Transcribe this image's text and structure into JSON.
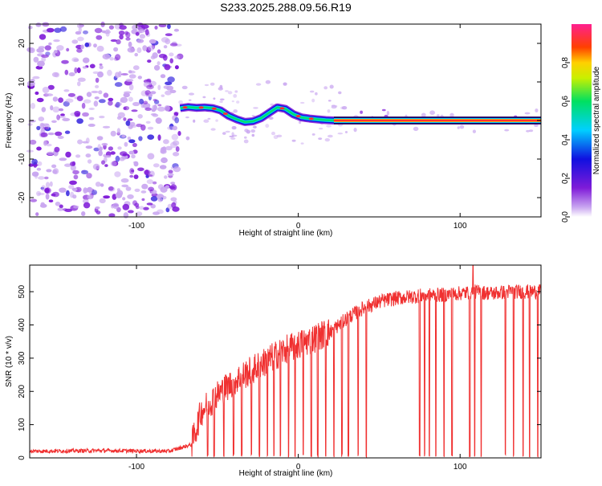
{
  "title": "S233.2025.288.09.56.R19",
  "chart_data": [
    {
      "type": "heatmap",
      "title": "S233.2025.288.09.56.R19",
      "xlabel": "Height of straight line (km)",
      "ylabel": "Frequency (Hz)",
      "xlim": [
        -166,
        150
      ],
      "ylim": [
        -25,
        25
      ],
      "xticks": [
        -100,
        0,
        100
      ],
      "yticks": [
        -20,
        -10,
        0,
        10,
        20
      ],
      "colorbar": {
        "label": "Normalized spectral amplitude",
        "range": [
          0.0,
          1.0
        ],
        "ticks": [
          "0.0",
          "0.2",
          "0.4",
          "0.6",
          "0.8"
        ],
        "tick_values": [
          0.0,
          0.2,
          0.4,
          0.6,
          0.8
        ]
      },
      "noise_region_x": [
        -166,
        -73
      ],
      "signal_trace": {
        "x": [
          -73,
          -68,
          -63,
          -58,
          -53,
          -48,
          -43,
          -38,
          -33,
          -28,
          -23,
          -18,
          -13,
          -8,
          -3,
          2,
          7,
          12,
          17,
          22,
          150
        ],
        "frequency_hz": [
          3.2,
          3.5,
          3.3,
          3.4,
          3.2,
          2.6,
          1.2,
          0.3,
          -0.4,
          -0.2,
          0.6,
          2.0,
          3.4,
          3.0,
          1.6,
          0.8,
          0.5,
          0.3,
          0.1,
          0.0,
          0.0
        ],
        "stable_line_hz": 0.0
      },
      "colors": [
        "#c9a6f0",
        "#7f1bd8",
        "#1010e0",
        "#00c8ff",
        "#00e070",
        "#f0e000",
        "#ff3030"
      ]
    },
    {
      "type": "line",
      "xlabel": "Height of straight line (km)",
      "ylabel": "SNR (10 * v/v)",
      "xlim": [
        -166,
        150
      ],
      "ylim": [
        0,
        580
      ],
      "xticks": [
        -100,
        0,
        100
      ],
      "yticks": [
        0,
        100,
        200,
        300,
        400,
        500
      ],
      "color": "#f03030",
      "series": [
        {
          "name": "SNR",
          "x": [
            -166,
            -120,
            -80,
            -66,
            -60,
            -50,
            -40,
            -30,
            -20,
            -10,
            0,
            10,
            20,
            30,
            40,
            50,
            60,
            70,
            80,
            90,
            100,
            110,
            120,
            130,
            140,
            150
          ],
          "values": [
            20,
            22,
            20,
            40,
            140,
            190,
            230,
            260,
            290,
            320,
            340,
            360,
            380,
            420,
            450,
            470,
            480,
            485,
            490,
            490,
            495,
            500,
            495,
            500,
            500,
            500
          ]
        }
      ],
      "dropout_x": [
        -56,
        -52,
        -46,
        -40,
        -35,
        -29,
        -24,
        -19,
        -15,
        -11,
        -6,
        -2,
        3,
        8,
        12,
        17,
        22,
        27,
        31,
        37,
        42,
        75,
        78,
        81,
        85,
        90,
        95,
        106,
        109,
        113,
        128,
        133,
        139,
        143,
        148
      ],
      "spike_peak": {
        "x": 108,
        "value": 578
      }
    }
  ]
}
